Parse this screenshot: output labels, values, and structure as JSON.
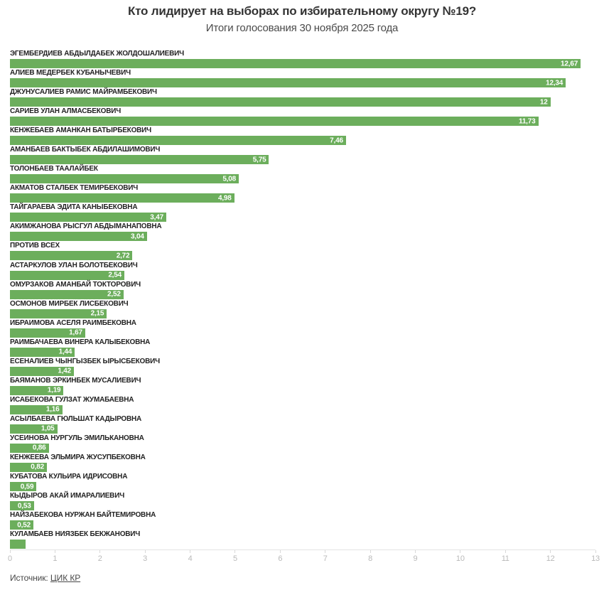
{
  "header": {
    "title": "Кто лидирует на выборах по избирательному округу №19?",
    "subtitle": "Итоги голосования 30 ноября 2025 года"
  },
  "footer": {
    "source_label": "Источник:",
    "source_link": "ЦИК КР"
  },
  "colors": {
    "bar": "#6cae5c",
    "value_label": "#ffffff",
    "candidate_label": "#222222",
    "axis_label": "#b9b9b9",
    "axis_line": "#e3e3e3"
  },
  "chart_data": {
    "type": "bar",
    "orientation": "horizontal",
    "title": "Кто лидирует на выборах по избирательному округу №19?",
    "subtitle": "Итоги голосования 30 ноября 2025 года",
    "categories": [
      "ЭГЕМБЕРДИЕВ АБДЫЛДАБЕК ЖОЛДОШАЛИЕВИЧ",
      "АЛИЕВ МЕДЕРБЕК КУБАНЫЧЕВИЧ",
      "ДЖУНУСАЛИЕВ РАМИС МАЙРАМБЕКОВИЧ",
      "САРИЕВ УЛАН АЛМАСБЕКОВИЧ",
      "КЕНЖЕБАЕВ АМАНКАН БАТЫРБЕКОВИЧ",
      "АМАНБАЕВ БАКТЫБЕК АБДИЛАШИМОВИЧ",
      "ТОЛОНБАЕВ ТААЛАЙБЕК",
      "АКМАТОВ СТАЛБЕК ТЕМИРБЕКОВИЧ",
      "ТАЙГАРАЕВА ЭДИТА КАНЫБЕКОВНА",
      "АКИМЖАНОВА РЫСГУЛ АБДЫМАНАПОВНА",
      "ПРОТИВ ВСЕХ",
      "АСТАРКУЛОВ УЛАН БОЛОТБЕКОВИЧ",
      "ОМУРЗАКОВ АМАНБАЙ ТОКТОРОВИЧ",
      "ОСМОНОВ МИРБЕК ЛИСБЕКОВИЧ",
      "ИБРАИМОВА АСЕЛЯ РАИМБЕКОВНА",
      "РАИМБАЧАЕВА ВИНЕРА КАЛЫБЕКОВНА",
      "ЕСЕНАЛИЕВ ЧЫНГЫЗБЕК ЫРЫСБЕКОВИЧ",
      "БАЯМАНОВ ЭРКИНБЕК МУСАЛИЕВИЧ",
      "ИСАБЕКОВА ГУЛЗАТ ЖУМАБАЕВНА",
      "АСЫЛБАЕВА ГЮЛЬШАТ КАДЫРОВНА",
      "УСЕИНОВА НУРГУЛЬ ЭМИЛЬКАНОВНА",
      "КЕНЖЕЕВА ЭЛЬМИРА ЖУСУПБЕКОВНА",
      "КУБАТОВА КУЛЬИРА ИДРИСОВНА",
      "КЫДЫРОВ АКАЙ ИМАРАЛИЕВИЧ",
      "НАЙЗАБЕКОВА НУРЖАН БАЙТЕМИРОВНА",
      "КУЛАМБАЕВ НИЯЗБЕК БЕКЖАНОВИЧ"
    ],
    "values": [
      12.67,
      12.34,
      12,
      11.73,
      7.46,
      5.75,
      5.08,
      4.98,
      3.47,
      3.04,
      2.72,
      2.54,
      2.52,
      2.15,
      1.67,
      1.44,
      1.42,
      1.19,
      1.16,
      1.05,
      0.86,
      0.82,
      0.59,
      0.53,
      0.52,
      0.35
    ],
    "value_labels": [
      "12,67",
      "12,34",
      "12",
      "11,73",
      "7,46",
      "5,75",
      "5,08",
      "4,98",
      "3,47",
      "3,04",
      "2,72",
      "2,54",
      "2,52",
      "2,15",
      "1,67",
      "1,44",
      "1,42",
      "1,19",
      "1,16",
      "1,05",
      "0,86",
      "0,82",
      "0,59",
      "0,53",
      "0,52",
      ""
    ],
    "xlabel": "",
    "ylabel": "",
    "xlim": [
      0,
      13
    ],
    "x_ticks": [
      0,
      1,
      2,
      3,
      4,
      5,
      6,
      7,
      8,
      9,
      10,
      11,
      12,
      13
    ],
    "grid": false,
    "legend_position": "none",
    "source": "ЦИК КР"
  }
}
